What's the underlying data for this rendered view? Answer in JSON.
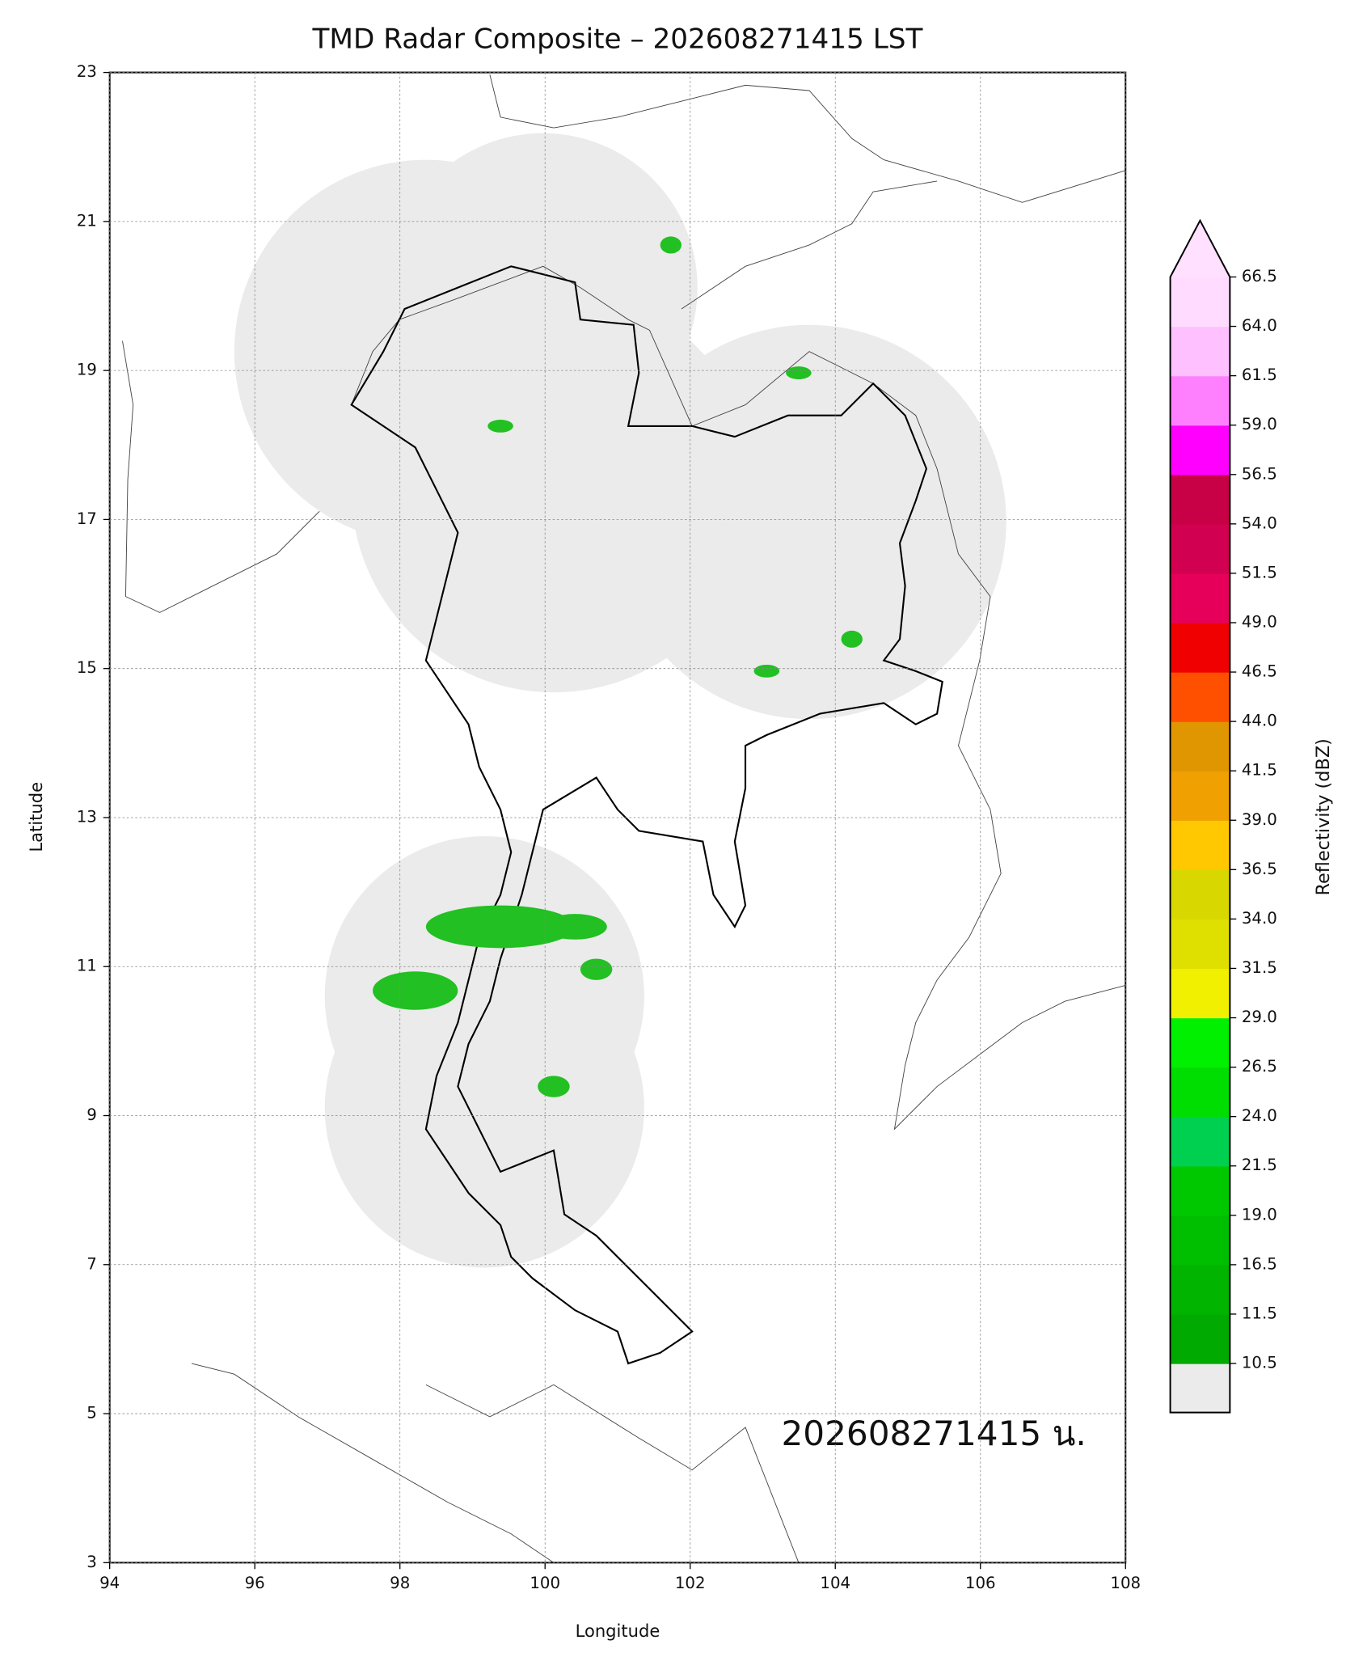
{
  "chart_data": {
    "type": "map",
    "title": "TMD Radar Composite – 202608271415 LST",
    "x_label": "Longitude",
    "y_label": "Latitude",
    "xlim": [
      94,
      108
    ],
    "ylim": [
      3,
      23
    ],
    "xticks": [
      94,
      96,
      98,
      100,
      102,
      104,
      106,
      108
    ],
    "yticks": [
      3,
      5,
      7,
      9,
      11,
      13,
      15,
      17,
      19,
      21,
      23
    ],
    "grid": true,
    "annotation": "202608271415 น.",
    "colorbar": {
      "label": "Reflectivity (dBZ)",
      "ticks": [
        10.5,
        11.5,
        16.5,
        {
          "value": 19,
          "label": "19.0"
        },
        21.5,
        {
          "value": 24,
          "label": "24.0"
        },
        26.5,
        {
          "value": 29,
          "label": "29.0"
        },
        31.5,
        {
          "value": 34,
          "label": "34.0"
        },
        36.5,
        {
          "value": 39,
          "label": "39.0"
        },
        41.5,
        {
          "value": 44,
          "label": "44.0"
        },
        46.5,
        {
          "value": 49,
          "label": "49.0"
        },
        51.5,
        {
          "value": 54,
          "label": "54.0"
        },
        56.5,
        {
          "value": 59,
          "label": "59.0"
        },
        61.5,
        {
          "value": 64,
          "label": "64.0"
        },
        66.5
      ],
      "colors": [
        "#00aa00",
        "#00b400",
        "#00be00",
        "#00c800",
        "#00d050",
        "#00dd00",
        "#00f000",
        "#f0f000",
        "#e0e000",
        "#d8d800",
        "#ffc800",
        "#f0a000",
        "#e09600",
        "#ff5000",
        "#f00000",
        "#e6005a",
        "#d20050",
        "#c80046",
        "#ff00ff",
        "#ff80ff",
        "#ffc0ff",
        "#ffdcff"
      ],
      "under_color": "#ebebeb",
      "over_color": "#ffe0ff"
    }
  }
}
